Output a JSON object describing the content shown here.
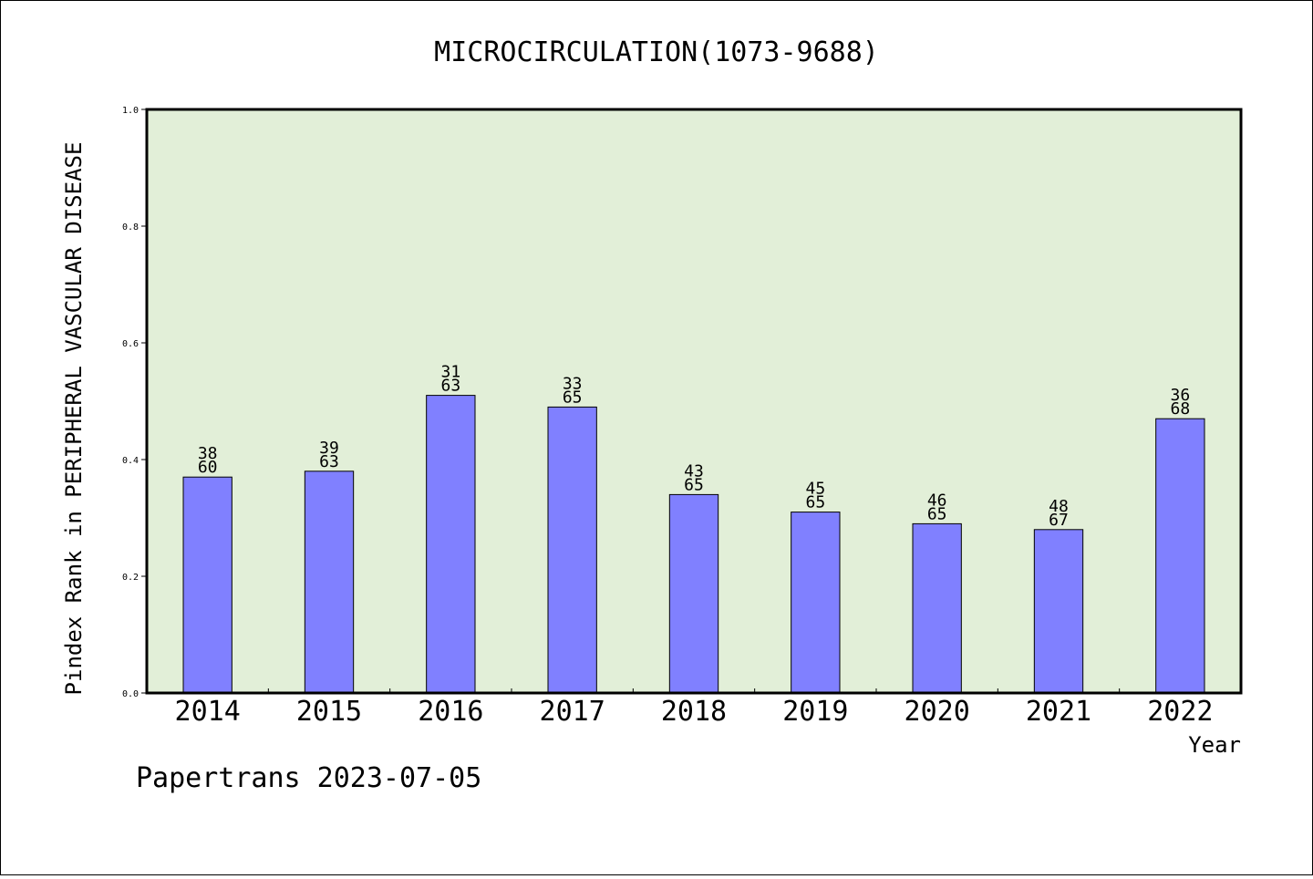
{
  "chart_data": {
    "type": "bar",
    "title": "MICROCIRCULATION(1073-9688)",
    "xlabel": "Year",
    "ylabel": "Pindex Rank in PERIPHERAL VASCULAR DISEASE",
    "categories": [
      "2014",
      "2015",
      "2016",
      "2017",
      "2018",
      "2019",
      "2020",
      "2021",
      "2022"
    ],
    "values": [
      0.37,
      0.38,
      0.51,
      0.49,
      0.34,
      0.31,
      0.29,
      0.28,
      0.47
    ],
    "rank": [
      "38",
      "39",
      "31",
      "33",
      "43",
      "45",
      "46",
      "48",
      "36"
    ],
    "total": [
      "60",
      "63",
      "63",
      "65",
      "65",
      "65",
      "65",
      "67",
      "68"
    ],
    "ylim": [
      0,
      1.0
    ],
    "yticks": [
      "0.0",
      "0.2",
      "0.4",
      "0.6",
      "0.8",
      "1.0"
    ],
    "grid": false,
    "bar_color": "#8080ff",
    "plot_background": "#e2efd8"
  },
  "footer": "Papertrans 2023-07-05"
}
